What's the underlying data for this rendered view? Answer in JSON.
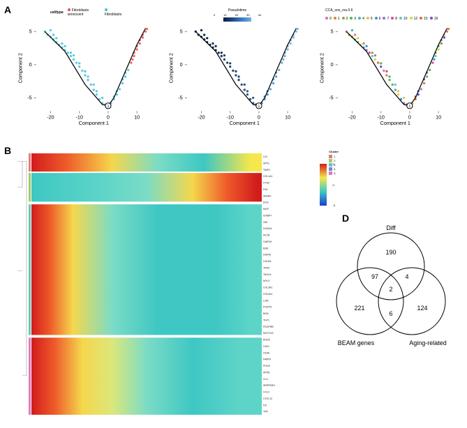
{
  "panels": {
    "A": "A",
    "B": "B",
    "D": "D"
  },
  "scatter": {
    "xlabel": "Component 1",
    "ylabel": "Component 2",
    "xlim": [
      -25,
      15
    ],
    "ylim": [
      -7,
      6
    ],
    "xticks": [
      -20,
      -10,
      0,
      10
    ],
    "yticks": [
      -5,
      0,
      5
    ],
    "trajectory": [
      [
        -22,
        5
      ],
      [
        -15,
        2
      ],
      [
        -8,
        -3
      ],
      [
        -2,
        -6
      ],
      [
        0,
        -6.2
      ],
      [
        2,
        -5
      ],
      [
        6,
        -1
      ],
      [
        10,
        3
      ],
      [
        13,
        5.5
      ]
    ],
    "branch_point": "1",
    "plot1": {
      "legend_title": "celltype",
      "legend_items": [
        {
          "label": "Fibroblasts senescent",
          "color": "#e94b4b"
        },
        {
          "label": "Fibroblasts",
          "color": "#3bc1d6"
        }
      ],
      "points_fib": [
        [
          -22,
          5
        ],
        [
          -21,
          4.5
        ],
        [
          -20,
          4.2
        ],
        [
          -19,
          3.8
        ],
        [
          -18,
          3.4
        ],
        [
          -17,
          3
        ],
        [
          -16,
          2.6
        ],
        [
          -15,
          2.2
        ],
        [
          -14,
          1.8
        ],
        [
          -13,
          1.3
        ],
        [
          -12,
          0.8
        ],
        [
          -11,
          0.3
        ],
        [
          -10,
          -0.3
        ],
        [
          -9,
          -0.9
        ],
        [
          -8,
          -1.6
        ],
        [
          -7,
          -2.3
        ],
        [
          -6,
          -3
        ],
        [
          -5,
          -3.8
        ],
        [
          -4,
          -4.5
        ],
        [
          -3,
          -5.2
        ],
        [
          -2,
          -5.8
        ],
        [
          -1,
          -6
        ],
        [
          0,
          -6.1
        ],
        [
          1,
          -5.8
        ],
        [
          2,
          -5.2
        ],
        [
          3,
          -4.5
        ],
        [
          4,
          -3.7
        ],
        [
          5,
          -2.8
        ],
        [
          6,
          -1.8
        ],
        [
          7,
          -0.8
        ],
        [
          -20,
          5.2
        ],
        [
          -18,
          4
        ],
        [
          -15,
          2.8
        ],
        [
          -12,
          1.4
        ],
        [
          -8,
          -1
        ],
        [
          -5,
          -3
        ],
        [
          -2,
          -5
        ],
        [
          2,
          -4.8
        ],
        [
          5,
          -2.2
        ],
        [
          -19,
          4.5
        ],
        [
          -16,
          3.2
        ],
        [
          -13,
          1.8
        ],
        [
          -10,
          0.2
        ],
        [
          -7,
          -1.8
        ],
        [
          -4,
          -4
        ],
        [
          3,
          -4
        ],
        [
          6,
          -1.2
        ]
      ],
      "points_sen": [
        [
          8,
          0.3
        ],
        [
          9,
          1.3
        ],
        [
          10,
          2.3
        ],
        [
          11,
          3.2
        ],
        [
          12,
          4.1
        ],
        [
          13,
          5
        ],
        [
          13.5,
          5.4
        ],
        [
          9,
          1.8
        ],
        [
          10,
          2.8
        ],
        [
          11,
          3.7
        ],
        [
          12,
          4.5
        ],
        [
          8.5,
          0.8
        ]
      ]
    },
    "plot2": {
      "legend_title": "Pseudotime",
      "ticks": [
        "0",
        "10",
        "20",
        "30",
        "40"
      ]
    },
    "plot3": {
      "legend_title": "CCA_snn_res.0.6",
      "clusters": [
        {
          "id": "0",
          "color": "#e06baa"
        },
        {
          "id": "1",
          "color": "#c78a3a"
        },
        {
          "id": "2",
          "color": "#8aa83a"
        },
        {
          "id": "3",
          "color": "#4fb84f"
        },
        {
          "id": "4",
          "color": "#3fb8a8"
        },
        {
          "id": "5",
          "color": "#e7c34a"
        },
        {
          "id": "6",
          "color": "#4a8ed6"
        },
        {
          "id": "7",
          "color": "#9a6cd6"
        },
        {
          "id": "8",
          "color": "#d64a8a"
        },
        {
          "id": "10",
          "color": "#5cc6c6"
        },
        {
          "id": "12",
          "color": "#c9d64a"
        },
        {
          "id": "15",
          "color": "#d66c4a"
        },
        {
          "id": "19",
          "color": "#6c4ad6"
        }
      ]
    }
  },
  "heatmap": {
    "cluster_legend_title": "Cluster",
    "cluster_colors": [
      {
        "id": "1",
        "color": "#e27b7b"
      },
      {
        "id": "2",
        "color": "#a7c95f"
      },
      {
        "id": "3",
        "color": "#5fc9be"
      },
      {
        "id": "4",
        "color": "#8d7bd6"
      },
      {
        "id": "5",
        "color": "#d97bc5"
      }
    ],
    "colorbar_ticks": [
      "3",
      "2",
      "1",
      "0",
      "-1",
      "-2",
      "-3"
    ],
    "blocks": [
      {
        "y": 0,
        "h": 0.07,
        "cluster": "#e27b7b",
        "gradient": [
          [
            "#d11c1c",
            0
          ],
          [
            "#ee5a2a",
            0.15
          ],
          [
            "#f5d74c",
            0.35
          ],
          [
            "#7bdcc6",
            0.55
          ],
          [
            "#3ec7c3",
            0.75
          ],
          [
            "#f5e74c",
            0.95
          ]
        ]
      },
      {
        "y": 0.075,
        "h": 0.11,
        "cluster": "#a7c95f",
        "gradient": [
          [
            "#3ec7c3",
            0
          ],
          [
            "#5dd4c8",
            0.3
          ],
          [
            "#7bdcc6",
            0.5
          ],
          [
            "#f5d74c",
            0.7
          ],
          [
            "#ee5a2a",
            0.85
          ],
          [
            "#d11c1c",
            0.98
          ]
        ]
      },
      {
        "y": 0.195,
        "h": 0.5,
        "cluster": "#5fc9be",
        "gradient": [
          [
            "#d11c1c",
            0
          ],
          [
            "#ee5a2a",
            0.08
          ],
          [
            "#f5d74c",
            0.18
          ],
          [
            "#7bdcc6",
            0.35
          ],
          [
            "#3ec7c3",
            0.55
          ],
          [
            "#3ec7c3",
            0.8
          ],
          [
            "#5dd4c8",
            0.95
          ]
        ]
      },
      {
        "y": 0.705,
        "h": 0.295,
        "cluster": "#d97bc5",
        "gradient": [
          [
            "#d11c1c",
            0
          ],
          [
            "#ee5a2a",
            0.1
          ],
          [
            "#f5d74c",
            0.22
          ],
          [
            "#dce77a",
            0.35
          ],
          [
            "#7bdcc6",
            0.5
          ],
          [
            "#3ec7c3",
            0.7
          ],
          [
            "#5dd4c8",
            0.9
          ]
        ]
      }
    ],
    "gene_labels_sample": [
      "LGI",
      "SPP1",
      "TIMP1",
      "COL1A1",
      "CTGF",
      "FN1",
      "SPARC",
      "DCN",
      "MGP",
      "IGFBP7",
      "VIM",
      "S100A4",
      "ACTB",
      "GAPDH",
      "B2M",
      "HSP90",
      "CALM1",
      "TPM1",
      "TAGLN",
      "MYL9",
      "COL3A1",
      "COL6A1",
      "LUM",
      "POSTN",
      "BGN",
      "THY1",
      "PDGFRB",
      "NOTCH3",
      "RGS5",
      "CAV1",
      "CD36",
      "FABP4",
      "PLIN2",
      "APOE",
      "CLU",
      "SERPINE1",
      "CCL2",
      "CXCL12",
      "IL6",
      "TNF"
    ]
  },
  "venn": {
    "sets": [
      {
        "label": "Diff",
        "only": 190
      },
      {
        "label": "BEAM genes",
        "only": 221
      },
      {
        "label": "Aging-related",
        "only": 124
      }
    ],
    "overlaps": {
      "diff_beam": 97,
      "diff_aging": 4,
      "beam_aging": 6,
      "all": 2
    }
  }
}
